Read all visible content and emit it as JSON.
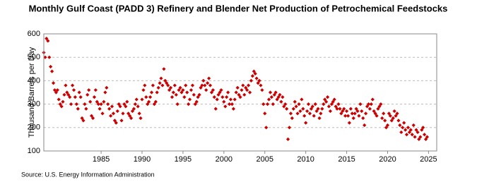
{
  "chart_data": {
    "type": "scatter",
    "title": "Monthly Gulf Coast (PADD 3) Refinery and Blender Net Production of Petrochemical Feedstocks",
    "y_label": "Thousand Barrels per Day",
    "source": "Source: U.S. Energy Information Administration",
    "xlim": [
      1978,
      2026
    ],
    "xticks": [
      1985,
      1990,
      1995,
      2000,
      2005,
      2010,
      2015,
      2020,
      2025
    ],
    "ylim": [
      100,
      600
    ],
    "yticks": [
      100,
      200,
      300,
      400,
      500,
      600
    ],
    "grid": true,
    "series": [
      {
        "color": "#cc0000",
        "x": [
          1978,
          1978.17,
          1978.33,
          1978.5,
          1978.67,
          1978.83,
          1979,
          1979.17,
          1979.33,
          1979.5,
          1979.67,
          1979.83,
          1980,
          1980.17,
          1980.33,
          1980.5,
          1980.67,
          1980.83,
          1981,
          1981.17,
          1981.33,
          1981.5,
          1981.67,
          1981.83,
          1982,
          1982.17,
          1982.33,
          1982.5,
          1982.67,
          1982.83,
          1983,
          1983.17,
          1983.33,
          1983.5,
          1983.67,
          1983.83,
          1984,
          1984.17,
          1984.33,
          1984.5,
          1984.67,
          1984.83,
          1985,
          1985.17,
          1985.33,
          1985.5,
          1985.67,
          1985.83,
          1986,
          1986.17,
          1986.33,
          1986.5,
          1986.67,
          1986.83,
          1987,
          1987.17,
          1987.33,
          1987.5,
          1987.67,
          1987.83,
          1988,
          1988.17,
          1988.33,
          1988.5,
          1988.67,
          1988.83,
          1989,
          1989.17,
          1989.33,
          1989.5,
          1989.67,
          1989.83,
          1990,
          1990.17,
          1990.33,
          1990.5,
          1990.67,
          1990.83,
          1991,
          1991.17,
          1991.33,
          1991.5,
          1991.67,
          1991.83,
          1992,
          1992.17,
          1992.33,
          1992.5,
          1992.67,
          1992.83,
          1993,
          1993.17,
          1993.33,
          1993.5,
          1993.67,
          1993.83,
          1994,
          1994.17,
          1994.33,
          1994.5,
          1994.67,
          1994.83,
          1995,
          1995.17,
          1995.33,
          1995.5,
          1995.67,
          1995.83,
          1996,
          1996.17,
          1996.33,
          1996.5,
          1996.67,
          1996.83,
          1997,
          1997.17,
          1997.33,
          1997.5,
          1997.67,
          1997.83,
          1998,
          1998.17,
          1998.33,
          1998.5,
          1998.67,
          1998.83,
          1999,
          1999.17,
          1999.33,
          1999.5,
          1999.67,
          1999.83,
          2000,
          2000.17,
          2000.33,
          2000.5,
          2000.67,
          2000.83,
          2001,
          2001.17,
          2001.33,
          2001.5,
          2001.67,
          2001.83,
          2002,
          2002.17,
          2002.33,
          2002.5,
          2002.67,
          2002.83,
          2003,
          2003.17,
          2003.33,
          2003.5,
          2003.67,
          2003.83,
          2004,
          2004.17,
          2004.33,
          2004.5,
          2004.67,
          2004.83,
          2005,
          2005.17,
          2005.33,
          2005.5,
          2005.67,
          2005.83,
          2006,
          2006.17,
          2006.33,
          2006.5,
          2006.67,
          2006.83,
          2007,
          2007.17,
          2007.33,
          2007.5,
          2007.67,
          2007.83,
          2008,
          2008.17,
          2008.33,
          2008.5,
          2008.67,
          2008.83,
          2009,
          2009.17,
          2009.33,
          2009.5,
          2009.67,
          2009.83,
          2010,
          2010.17,
          2010.33,
          2010.5,
          2010.67,
          2010.83,
          2011,
          2011.17,
          2011.33,
          2011.5,
          2011.67,
          2011.83,
          2012,
          2012.17,
          2012.33,
          2012.5,
          2012.67,
          2012.83,
          2013,
          2013.17,
          2013.33,
          2013.5,
          2013.67,
          2013.83,
          2014,
          2014.17,
          2014.33,
          2014.5,
          2014.67,
          2014.83,
          2015,
          2015.17,
          2015.33,
          2015.5,
          2015.67,
          2015.83,
          2016,
          2016.17,
          2016.33,
          2016.5,
          2016.67,
          2016.83,
          2017,
          2017.17,
          2017.33,
          2017.5,
          2017.67,
          2017.83,
          2018,
          2018.17,
          2018.33,
          2018.5,
          2018.67,
          2018.83,
          2019,
          2019.17,
          2019.33,
          2019.5,
          2019.67,
          2019.83,
          2020,
          2020.17,
          2020.33,
          2020.5,
          2020.67,
          2020.83,
          2021,
          2021.17,
          2021.33,
          2021.5,
          2021.67,
          2021.83,
          2022,
          2022.17,
          2022.33,
          2022.5,
          2022.67,
          2022.83,
          2023,
          2023.17,
          2023.33,
          2023.5,
          2023.67,
          2023.83,
          2024,
          2024.17,
          2024.33,
          2024.5,
          2024.67,
          2024.83
        ],
        "values": [
          520,
          500,
          580,
          570,
          500,
          460,
          440,
          390,
          360,
          350,
          360,
          320,
          300,
          290,
          310,
          340,
          380,
          350,
          340,
          330,
          300,
          380,
          360,
          330,
          300,
          280,
          350,
          330,
          240,
          230,
          300,
          280,
          340,
          360,
          310,
          250,
          240,
          330,
          360,
          310,
          300,
          280,
          300,
          260,
          310,
          350,
          370,
          300,
          280,
          250,
          290,
          260,
          230,
          220,
          270,
          300,
          290,
          230,
          260,
          300,
          290,
          310,
          260,
          250,
          240,
          270,
          280,
          300,
          320,
          290,
          260,
          240,
          320,
          360,
          380,
          330,
          300,
          310,
          330,
          350,
          380,
          300,
          310,
          350,
          370,
          390,
          410,
          380,
          450,
          400,
          390,
          380,
          360,
          370,
          330,
          350,
          380,
          340,
          300,
          360,
          370,
          350,
          360,
          330,
          380,
          350,
          300,
          320,
          360,
          380,
          340,
          300,
          310,
          330,
          340,
          370,
          380,
          400,
          380,
          360,
          390,
          410,
          380,
          350,
          360,
          330,
          280,
          320,
          340,
          350,
          360,
          330,
          310,
          290,
          330,
          350,
          300,
          320,
          300,
          280,
          320,
          350,
          370,
          340,
          330,
          360,
          380,
          340,
          370,
          360,
          380,
          350,
          400,
          420,
          440,
          430,
          410,
          390,
          400,
          380,
          360,
          300,
          260,
          200,
          300,
          320,
          350,
          330,
          300,
          340,
          350,
          320,
          330,
          340,
          310,
          330,
          290,
          300,
          280,
          150,
          200,
          260,
          240,
          280,
          310,
          290,
          260,
          300,
          270,
          320,
          280,
          250,
          220,
          270,
          300,
          260,
          280,
          290,
          250,
          300,
          270,
          280,
          240,
          260,
          280,
          300,
          320,
          310,
          330,
          290,
          270,
          300,
          310,
          320,
          290,
          280,
          300,
          280,
          260,
          270,
          280,
          250,
          270,
          250,
          220,
          280,
          260,
          240,
          260,
          280,
          270,
          250,
          300,
          270,
          240,
          210,
          260,
          290,
          300,
          280,
          300,
          320,
          270,
          260,
          250,
          280,
          290,
          300,
          240,
          260,
          230,
          200,
          210,
          260,
          250,
          230,
          240,
          270,
          250,
          260,
          230,
          210,
          180,
          200,
          220,
          190,
          170,
          200,
          180,
          190,
          170,
          210,
          160,
          190,
          180,
          150,
          160,
          190,
          200,
          170,
          150,
          160
        ]
      }
    ]
  }
}
